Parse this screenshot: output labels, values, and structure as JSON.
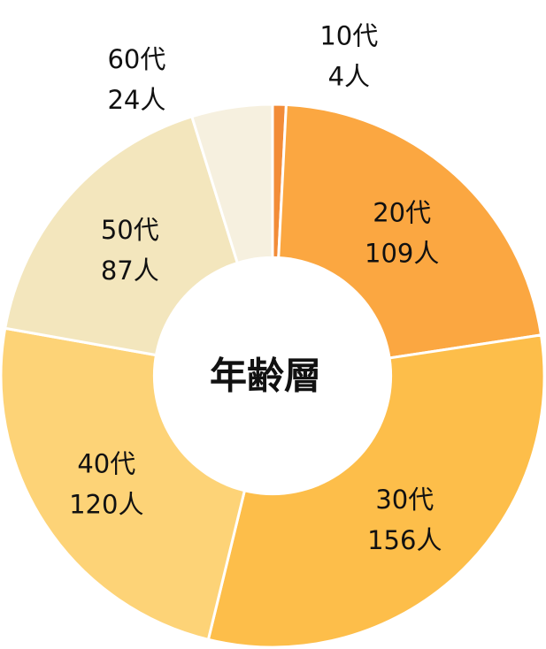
{
  "chart_data": {
    "type": "pie",
    "title": "年齢層",
    "unit": "人",
    "categories": [
      "10代",
      "20代",
      "30代",
      "40代",
      "50代",
      "60代"
    ],
    "values": [
      4,
      109,
      156,
      120,
      87,
      24
    ],
    "value_labels": [
      "4人",
      "109人",
      "156人",
      "120人",
      "87人",
      "24人"
    ],
    "colors": [
      "#F28C38",
      "#FBA741",
      "#FDBE4A",
      "#FDD377",
      "#F3E6BD",
      "#F6F0DF"
    ],
    "hole_ratio": 0.44,
    "start_angle": "top",
    "direction": "clockwise",
    "legend": "none"
  }
}
